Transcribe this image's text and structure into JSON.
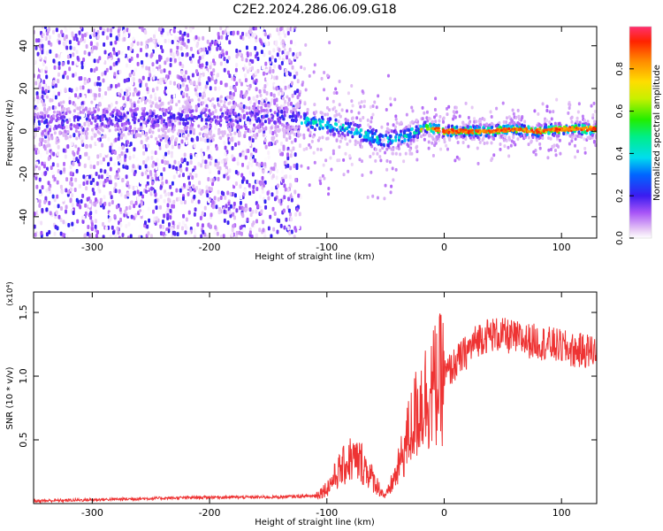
{
  "title": "C2E2.2024.286.06.09.G18",
  "chart_data": [
    {
      "type": "heatmap",
      "xlabel": "Height of straight line (km)",
      "ylabel": "Frequency (Hz)",
      "xlim": [
        -350,
        130
      ],
      "ylim": [
        -50,
        49
      ],
      "xticks": [
        -300,
        -200,
        -100,
        0,
        100
      ],
      "yticks": [
        -40,
        -20,
        0,
        20,
        40
      ],
      "colorbar": {
        "label": "Normalized spectral amplitude",
        "range": [
          0,
          1
        ],
        "ticks": [
          0.0,
          0.2,
          0.4,
          0.6,
          0.8
        ]
      },
      "features": {
        "noisy_region_x": [
          -350,
          -122
        ],
        "signal_track": [
          [
            -330,
            4
          ],
          [
            -280,
            6
          ],
          [
            -220,
            6
          ],
          [
            -165,
            6
          ],
          [
            -140,
            7
          ],
          [
            -110,
            4
          ],
          [
            -90,
            2
          ],
          [
            -75,
            0
          ],
          [
            -60,
            -3
          ],
          [
            -50,
            -4
          ],
          [
            -35,
            -3
          ],
          [
            -25,
            0
          ],
          [
            -15,
            2
          ],
          [
            0,
            0
          ],
          [
            20,
            0
          ],
          [
            40,
            0
          ],
          [
            60,
            1
          ],
          [
            80,
            0
          ],
          [
            100,
            1
          ],
          [
            120,
            1
          ],
          [
            130,
            1
          ]
        ]
      }
    },
    {
      "type": "line",
      "xlabel": "Height of straight line (km)",
      "ylabel": "SNR (10 * v/v)",
      "y_multiplier": "(x10⁴)",
      "xlim": [
        -350,
        130
      ],
      "ylim": [
        0,
        1.66
      ],
      "xticks": [
        -300,
        -200,
        -100,
        0,
        100
      ],
      "yticks": [
        0.5,
        1.0,
        1.5
      ],
      "ytick_labels": [
        "0.5",
        "1.0",
        "1.5"
      ],
      "color": "#ee3333",
      "x": [
        -350,
        -300,
        -250,
        -200,
        -150,
        -110,
        -100,
        -90,
        -80,
        -70,
        -60,
        -50,
        -40,
        -30,
        -20,
        -10,
        0,
        10,
        20,
        30,
        40,
        50,
        60,
        70,
        80,
        90,
        100,
        110,
        120,
        130
      ],
      "y": [
        0.02,
        0.03,
        0.04,
        0.05,
        0.05,
        0.06,
        0.12,
        0.25,
        0.35,
        0.32,
        0.18,
        0.05,
        0.25,
        0.55,
        0.8,
        0.9,
        1.0,
        1.1,
        1.2,
        1.3,
        1.33,
        1.32,
        1.3,
        1.28,
        1.27,
        1.25,
        1.23,
        1.2,
        1.2,
        1.2
      ]
    }
  ]
}
